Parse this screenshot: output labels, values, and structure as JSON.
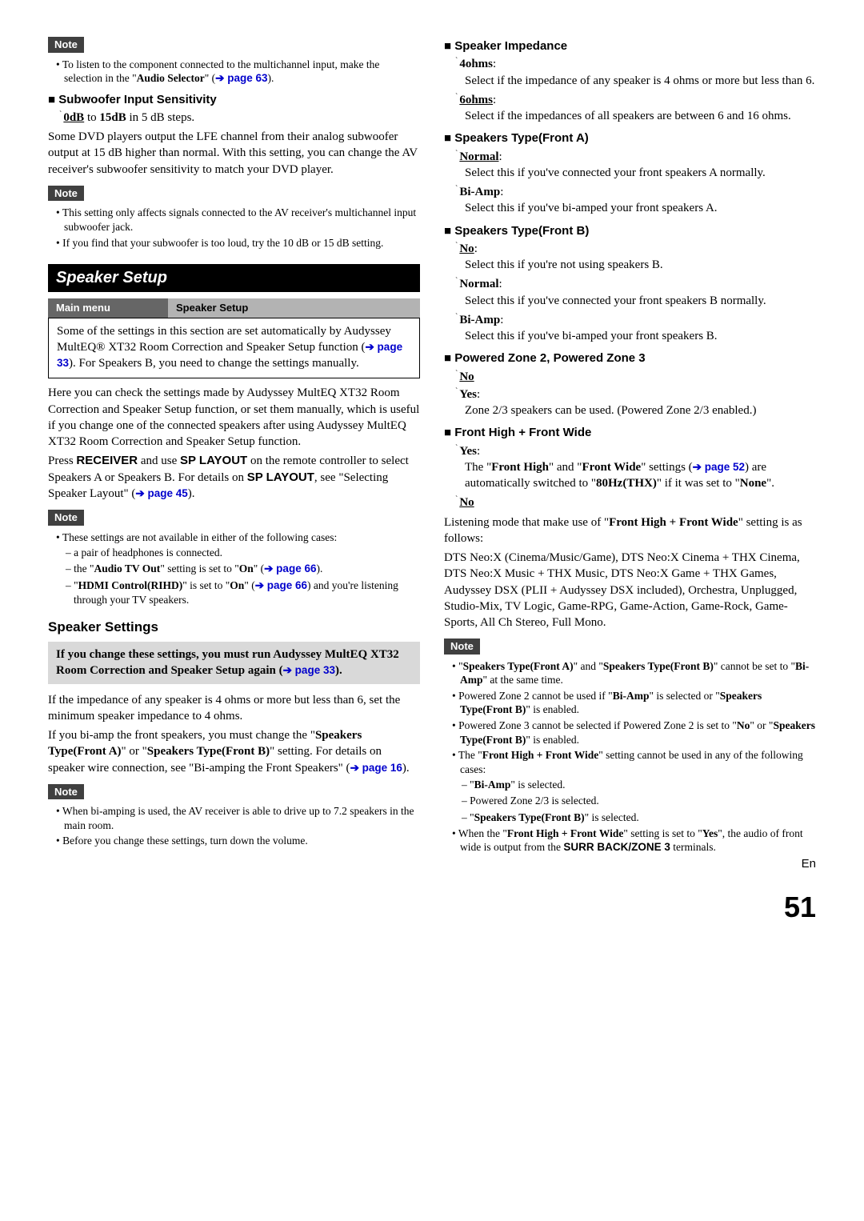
{
  "left": {
    "note1": "Note",
    "note1_bullet": "To listen to the component connected to the multichannel input, make the selection in the \"",
    "note1_bold": "Audio Selector",
    "note1_tail": "\" (",
    "note1_link": "➔ page 63",
    "note1_close": ").",
    "sub_sens_h": "Subwoofer Input Sensitivity",
    "sub_sens_opt_a": "0dB",
    "sub_sens_mid": " to ",
    "sub_sens_opt_b": "15dB",
    "sub_sens_tail": " in 5 dB steps.",
    "sub_sens_p": "Some DVD players output the LFE channel from their analog subwoofer output at 15 dB higher than normal. With this setting, you can change the AV receiver's subwoofer sensitivity to match your DVD player.",
    "note2": "Note",
    "note2_b1": "This setting only affects signals connected to the AV receiver's multichannel input subwoofer jack.",
    "note2_b2": "If you find that your subwoofer is too loud, try the 10 dB or 15 dB setting.",
    "banner": "Speaker Setup",
    "menu_c1": "Main menu",
    "menu_c2": "Speaker Setup",
    "box_pre": "Some of the settings in this section are set automatically by Audyssey MultEQ® XT32 Room Correction and Speaker Setup function (",
    "box_link": "➔ page 33",
    "box_post": "). For Speakers B, you need to change the settings manually.",
    "para1": "Here you can check the settings made by Audyssey MultEQ XT32 Room Correction and Speaker Setup function, or set them manually, which is useful if you change one of the connected speakers after using Audyssey MultEQ XT32 Room Correction and Speaker Setup function.",
    "para2a": "Press ",
    "para2_b1": "RECEIVER",
    "para2b": " and use ",
    "para2_b2": "SP LAYOUT",
    "para2c": " on the remote controller to select Speakers A or Speakers B. For details on ",
    "para2_b3": "SP LAYOUT",
    "para2d": ", see \"Selecting Speaker Layout\" (",
    "para2_link": "➔ page 45",
    "para2e": ").",
    "note3": "Note",
    "note3_b1": "These settings are not available in either of the following cases:",
    "note3_d1a": "a pair of headphones is connected.",
    "note3_d2a": "the \"",
    "note3_d2b": "Audio TV Out",
    "note3_d2c": "\" setting is set to \"",
    "note3_d2d": "On",
    "note3_d2e": "\" (",
    "note3_d2link": "➔ page 66",
    "note3_d2f": ").",
    "note3_d3a": "\"",
    "note3_d3b": "HDMI Control(RIHD)",
    "note3_d3c": "\" is set to \"",
    "note3_d3d": "On",
    "note3_d3e": "\" (",
    "note3_d3link": "➔ page 66",
    "note3_d3f": ") and you're listening through your TV speakers.",
    "ss_h": "Speaker Settings",
    "grey_a": "If you change these settings, you must run Audyssey MultEQ XT32 Room Correction and Speaker Setup again (",
    "grey_link": "➔ page 33",
    "grey_b": ").",
    "para3": "If the impedance of any speaker is 4 ohms or more but less than 6, set the minimum speaker impedance to 4 ohms.",
    "para4a": "If you bi-amp the front speakers, you must change the \"",
    "para4b1": "Speakers Type(Front A)",
    "para4b": "\" or \"",
    "para4b2": "Speakers Type(Front B)",
    "para4c": "\" setting. For details on speaker wire connection, see \"Bi-amping the Front Speakers\" (",
    "para4_link": "➔ page 16",
    "para4d": ").",
    "note4": "Note",
    "note4_b1": "When bi-amping is used, the AV receiver is able to drive up to 7.2 speakers in the main room.",
    "note4_b2": "Before you change these settings, turn down the volume."
  },
  "right": {
    "imp_h": "Speaker Impedance",
    "imp_o1": "4ohms",
    "imp_o1d": "Select if the impedance of any speaker is 4 ohms or more but less than 6.",
    "imp_o2": "6ohms",
    "imp_o2d": "Select if the impedances of all speakers are between 6 and 16 ohms.",
    "sta_h": "Speakers Type(Front A)",
    "sta_o1": "Normal",
    "sta_o1d": "Select this if you've connected your front speakers A normally.",
    "sta_o2": "Bi-Amp",
    "sta_o2d": "Select this if you've bi-amped your front speakers A.",
    "stb_h": "Speakers Type(Front B)",
    "stb_o1": "No",
    "stb_o1d": "Select this if you're not using speakers B.",
    "stb_o2": "Normal",
    "stb_o2d": "Select this if you've connected your front speakers B normally.",
    "stb_o3": "Bi-Amp",
    "stb_o3d": "Select this if you've bi-amped your front speakers B.",
    "pz_h": "Powered Zone 2, Powered Zone 3",
    "pz_o1": "No",
    "pz_o2": "Yes",
    "pz_o2d": "Zone 2/3 speakers can be used. (Powered Zone 2/3 enabled.)",
    "fh_h": "Front High + Front Wide",
    "fh_o1": "Yes",
    "fh_o1a": "The \"",
    "fh_o1b1": "Front High",
    "fh_o1b": "\" and \"",
    "fh_o1b2": "Front Wide",
    "fh_o1c": "\" settings (",
    "fh_o1link": "➔ page 52",
    "fh_o1d": ") are automatically switched to \"",
    "fh_o1b3": "80Hz(THX)",
    "fh_o1e": "\" if it was set to \"",
    "fh_o1b4": "None",
    "fh_o1f": "\".",
    "fh_o2": "No",
    "fh_pa": "Listening mode that make use of \"",
    "fh_pb": "Front High + Front Wide",
    "fh_pc": "\" setting is as follows:",
    "fh_modes": "DTS Neo:X (Cinema/Music/Game), DTS Neo:X Cinema + THX Cinema, DTS Neo:X Music + THX Music, DTS Neo:X Game + THX Games, Audyssey DSX (PLII + Audyssey DSX included), Orchestra, Unplugged, Studio-Mix, TV Logic, Game-RPG, Game-Action, Game-Rock, Game-Sports, All Ch Stereo, Full Mono.",
    "note5": "Note",
    "n5_b1a": "\"",
    "n5_b1b1": "Speakers Type(Front A)",
    "n5_b1b": "\" and \"",
    "n5_b1b2": "Speakers Type(Front B)",
    "n5_b1c": "\" cannot be set to \"",
    "n5_b1b3": "Bi-Amp",
    "n5_b1d": "\" at the same time.",
    "n5_b2a": "Powered Zone 2 cannot be used if \"",
    "n5_b2b1": "Bi-Amp",
    "n5_b2b": "\" is selected or \"",
    "n5_b2b2": "Speakers Type(Front B)",
    "n5_b2c": "\" is enabled.",
    "n5_b3a": "Powered Zone 3 cannot be selected if Powered Zone 2 is set to \"",
    "n5_b3b1": "No",
    "n5_b3b": "\" or \"",
    "n5_b3b2": "Speakers Type(Front B)",
    "n5_b3c": "\" is enabled.",
    "n5_b4a": "The \"",
    "n5_b4b1": "Front High + Front Wide",
    "n5_b4b": "\" setting cannot be used in any of the following cases:",
    "n5_d1a": "\"",
    "n5_d1b": "Bi-Amp",
    "n5_d1c": "\" is selected.",
    "n5_d2": "Powered Zone 2/3 is selected.",
    "n5_d3a": "\"",
    "n5_d3b": "Speakers Type(Front B)",
    "n5_d3c": "\" is selected.",
    "n5_b5a": "When the \"",
    "n5_b5b1": "Front High + Front Wide",
    "n5_b5b": "\" setting is set to \"",
    "n5_b5b2": "Yes",
    "n5_b5c": "\", the audio of front wide is output from the ",
    "n5_b5b3": "SURR BACK/ZONE 3",
    "n5_b5d": " terminals."
  },
  "footer": {
    "lang": "En",
    "page": "51"
  }
}
